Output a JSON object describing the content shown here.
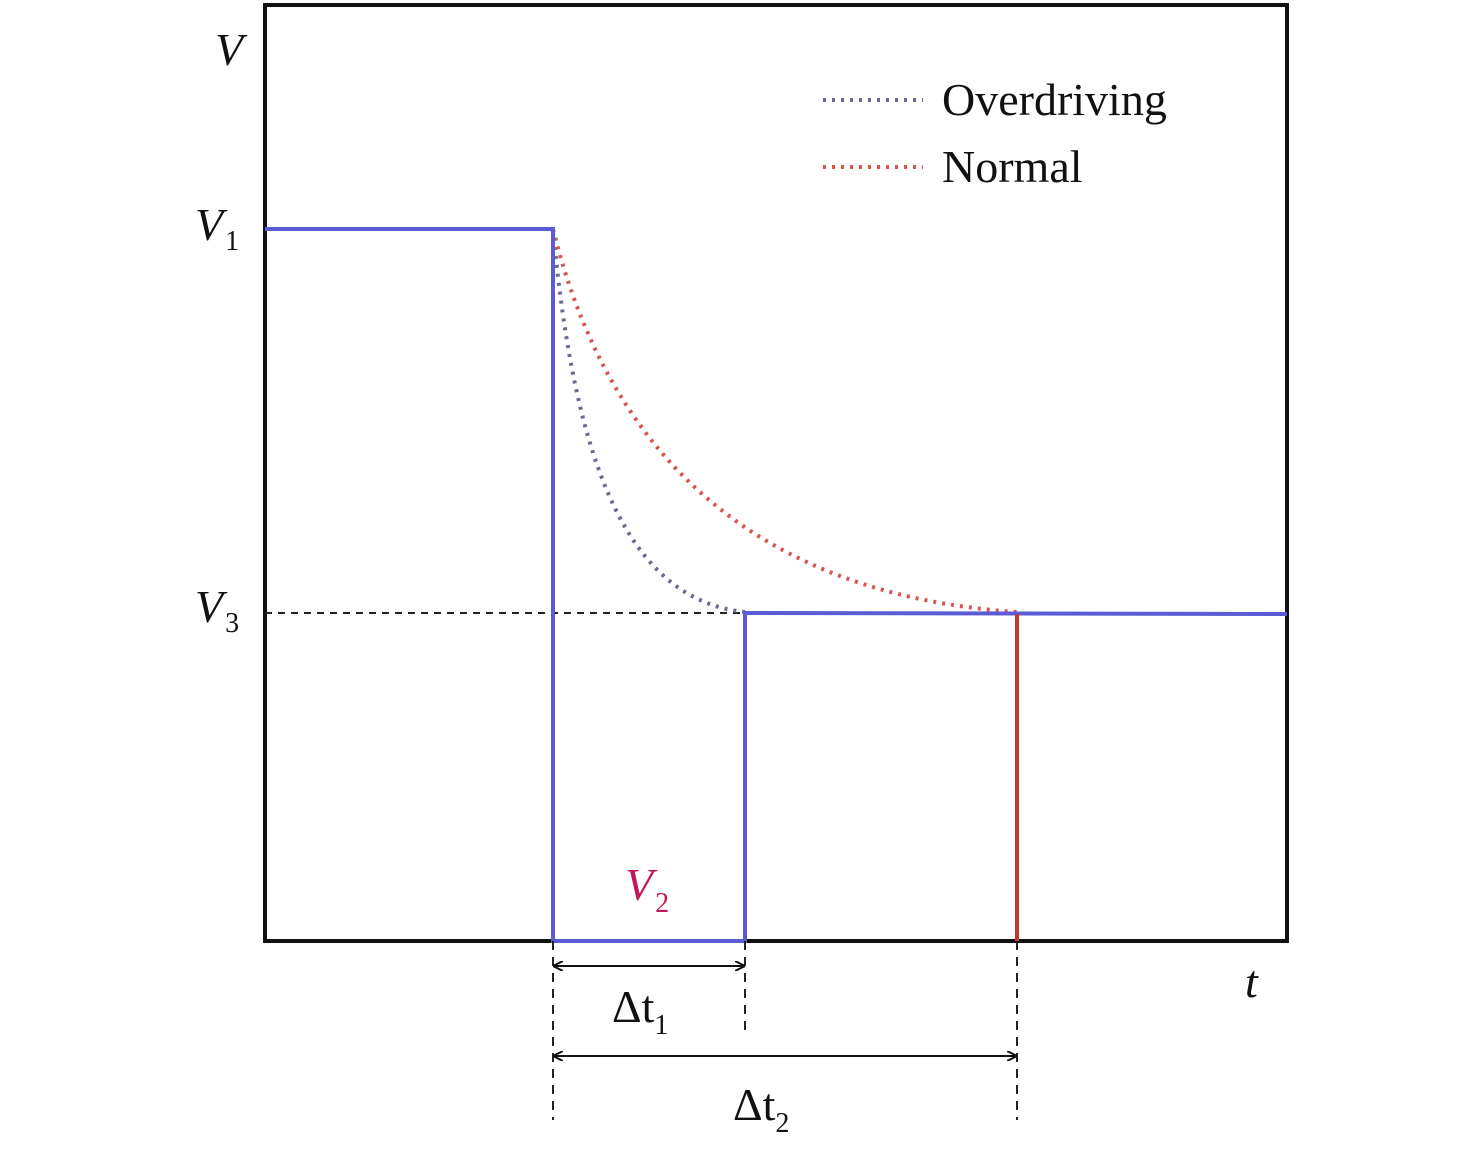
{
  "axes": {
    "y_label": "V",
    "x_label": "t"
  },
  "levels": {
    "v1": {
      "base": "V",
      "sub": "1"
    },
    "v2": {
      "base": "V",
      "sub": "2"
    },
    "v3": {
      "base": "V",
      "sub": "3"
    }
  },
  "intervals": {
    "dt1": {
      "base": "Δt",
      "sub": "1"
    },
    "dt2": {
      "base": "Δt",
      "sub": "2"
    }
  },
  "legend": {
    "items": [
      "Overdriving",
      "Normal"
    ]
  }
}
